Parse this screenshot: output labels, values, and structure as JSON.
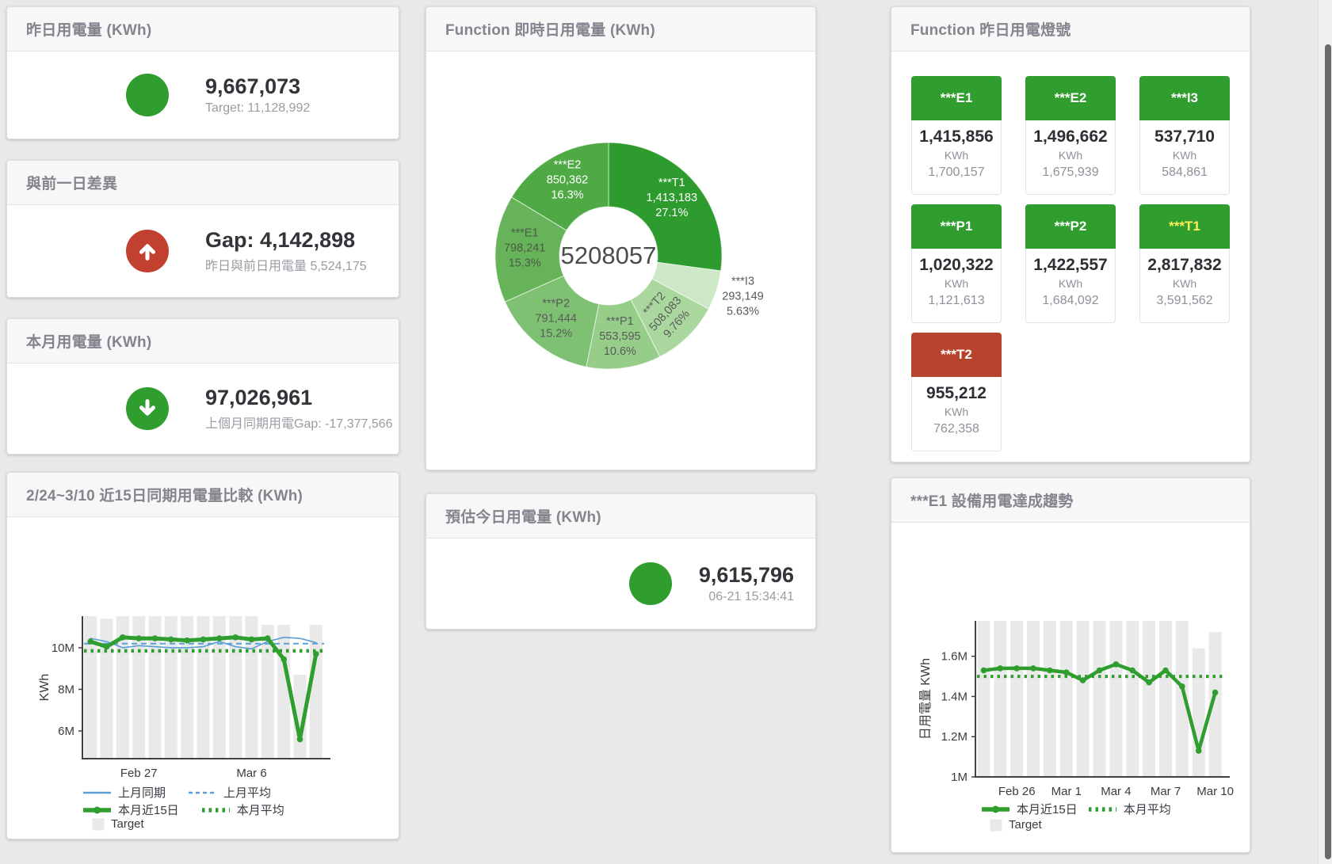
{
  "page": {
    "background": "#eae9e9"
  },
  "colors": {
    "green": "#2f9e2f",
    "red": "#c2402f",
    "blue": "#5b9fd8",
    "target_gray": "#e9e9e9",
    "warn_yellow": "#ffef54"
  },
  "stat_cards": [
    {
      "title": "昨日用電量 (KWh)",
      "icon": "circle",
      "icon_color": "#2f9e2f",
      "value": "9,667,073",
      "subtext": "Target: 11,128,992"
    },
    {
      "title": "與前一日差異",
      "icon": "arrow-up",
      "icon_color": "#c2402f",
      "value": "Gap: 4,142,898",
      "subtext": "昨日與前日用電量 5,524,175"
    },
    {
      "title": "本月用電量 (KWh)",
      "icon": "arrow-down",
      "icon_color": "#2f9e2f",
      "value": "97,026,961",
      "subtext": "上個月同期用電Gap: -17,377,566"
    },
    {
      "title": "預估今日用電量 (KWh)",
      "icon": "circle",
      "icon_color": "#2f9e2f",
      "value": "9,615,796",
      "subtext": "06-21 15:34:41"
    }
  ],
  "lights": {
    "title": "Function 昨日用電燈號",
    "unit": "KWh",
    "tiles": [
      {
        "name": "***E1",
        "value": "1,415,856",
        "target": "1,700,157",
        "header_bg": "#2f9e2f",
        "header_fg": "#ffffff"
      },
      {
        "name": "***E2",
        "value": "1,496,662",
        "target": "1,675,939",
        "header_bg": "#2f9e2f",
        "header_fg": "#ffffff"
      },
      {
        "name": "***I3",
        "value": "537,710",
        "target": "584,861",
        "header_bg": "#2f9e2f",
        "header_fg": "#ffffff"
      },
      {
        "name": "***P1",
        "value": "1,020,322",
        "target": "1,121,613",
        "header_bg": "#2f9e2f",
        "header_fg": "#ffffff"
      },
      {
        "name": "***P2",
        "value": "1,422,557",
        "target": "1,684,092",
        "header_bg": "#2f9e2f",
        "header_fg": "#ffffff"
      },
      {
        "name": "***T1",
        "value": "2,817,832",
        "target": "3,591,562",
        "header_bg": "#2f9e2f",
        "header_fg": "#ffef54"
      },
      {
        "name": "***T2",
        "value": "955,212",
        "target": "762,358",
        "header_bg": "#b7432d",
        "header_fg": "#ffffff"
      }
    ]
  },
  "chart_data": [
    {
      "id": "realtime_donut",
      "type": "pie",
      "title": "Function 即時日用電量 (KWh)",
      "center_label": "5208057",
      "unit": "KWh",
      "slices": [
        {
          "name": "***T1",
          "value": 1413183,
          "value_label": "1,413,183",
          "pct": "27.1%",
          "color": "#2e9b2e",
          "label_color": "#ffffff"
        },
        {
          "name": "***I3",
          "value": 293149,
          "value_label": "293,149",
          "pct": "5.63%",
          "color": "#cde8c6",
          "label_color": "#5a5a5a",
          "label_outside": true
        },
        {
          "name": "***T2",
          "value": 508083,
          "value_label": "508,083",
          "pct": "9.76%",
          "color": "#a9d79e",
          "label_color": "#5a5a5a",
          "label_rotate": -48
        },
        {
          "name": "***P1",
          "value": 553595,
          "value_label": "553,595",
          "pct": "10.6%",
          "color": "#95cd89",
          "label_color": "#5a5a5a"
        },
        {
          "name": "***P2",
          "value": 791444,
          "value_label": "791,444",
          "pct": "15.2%",
          "color": "#7ec172",
          "label_color": "#5a5a5a"
        },
        {
          "name": "***E1",
          "value": 798241,
          "value_label": "798,241",
          "pct": "15.3%",
          "color": "#66b35a",
          "label_color": "#4c5b46"
        },
        {
          "name": "***E2",
          "value": 850362,
          "value_label": "850,362",
          "pct": "16.3%",
          "color": "#4fa944",
          "label_color": "#ffffff"
        }
      ]
    },
    {
      "id": "compare15",
      "type": "line",
      "title": "2/24~3/10 近15日同期用電量比較 (KWh)",
      "ylabel": "KWh",
      "ylim": [
        4.67,
        11.52
      ],
      "y_ticks": [
        {
          "label": "6M",
          "value": 6
        },
        {
          "label": "8M",
          "value": 8
        },
        {
          "label": "10M",
          "value": 10
        }
      ],
      "x_ticks": [
        {
          "label": "Feb 27",
          "index": 3
        },
        {
          "label": "Mar 6",
          "index": 10
        }
      ],
      "n": 15,
      "grid": false,
      "target_name": "Target",
      "target_color": "#e9e9e9",
      "targets": [
        11.52,
        11.4,
        11.52,
        11.52,
        11.52,
        11.52,
        11.52,
        11.52,
        11.52,
        11.52,
        11.52,
        11.1,
        11.1,
        8.7,
        11.1
      ],
      "series": [
        {
          "name": "上月同期",
          "style": "solid",
          "color": "#5b9fd8",
          "width": 1.6,
          "values": [
            10.45,
            10.3,
            10.0,
            10.1,
            10.05,
            10.0,
            10.0,
            10.05,
            10.3,
            10.05,
            9.95,
            10.3,
            10.5,
            10.45,
            10.25
          ]
        },
        {
          "name": "上月平均",
          "style": "dashed",
          "color": "#5b9fd8",
          "width": 2,
          "avg": 10.2
        },
        {
          "name": "本月近15日",
          "style": "solid",
          "color": "#2f9e2f",
          "width": 5,
          "markers": true,
          "values": [
            10.3,
            10.05,
            10.5,
            10.45,
            10.45,
            10.4,
            10.35,
            10.4,
            10.45,
            10.5,
            10.4,
            10.45,
            9.45,
            5.6,
            9.7
          ]
        },
        {
          "name": "本月平均",
          "style": "dotted",
          "color": "#2f9e2f",
          "width": 4.5,
          "avg": 9.85
        }
      ],
      "legend": [
        [
          {
            "marker": "line-thin",
            "color": "#5b9fd8",
            "label": "上月同期"
          },
          {
            "marker": "line-dashed",
            "color": "#5b9fd8",
            "label": "上月平均"
          }
        ],
        [
          {
            "marker": "line-thick-dot",
            "color": "#2f9e2f",
            "label": "本月近15日"
          },
          {
            "marker": "line-dotted",
            "color": "#2f9e2f",
            "label": "本月平均"
          }
        ],
        [
          {
            "marker": "square",
            "color": "#e9e9e9",
            "label": "Target"
          }
        ]
      ]
    },
    {
      "id": "e1_trend",
      "type": "line",
      "title": "***E1 設備用電達成趨勢",
      "ylabel": "日用電量 KWh",
      "ylim": [
        1.0,
        1.776
      ],
      "y_ticks": [
        {
          "label": "1M",
          "value": 1
        },
        {
          "label": "1.2M",
          "value": 1.2
        },
        {
          "label": "1.4M",
          "value": 1.4
        },
        {
          "label": "1.6M",
          "value": 1.6
        }
      ],
      "x_ticks": [
        {
          "label": "Feb 26",
          "index": 2
        },
        {
          "label": "Mar 1",
          "index": 5
        },
        {
          "label": "Mar 4",
          "index": 8
        },
        {
          "label": "Mar 7",
          "index": 11
        },
        {
          "label": "Mar 10",
          "index": 14
        }
      ],
      "n": 15,
      "grid": false,
      "target_name": "Target",
      "target_color": "#e9e9e9",
      "targets": [
        1.776,
        1.776,
        1.776,
        1.776,
        1.776,
        1.776,
        1.776,
        1.776,
        1.776,
        1.776,
        1.776,
        1.776,
        1.776,
        1.64,
        1.72
      ],
      "series": [
        {
          "name": "本月近15日",
          "style": "solid",
          "color": "#2f9e2f",
          "width": 4.5,
          "markers": true,
          "values": [
            1.53,
            1.54,
            1.54,
            1.54,
            1.53,
            1.52,
            1.48,
            1.53,
            1.56,
            1.53,
            1.47,
            1.53,
            1.45,
            1.13,
            1.42
          ]
        },
        {
          "name": "本月平均",
          "style": "dotted",
          "color": "#2f9e2f",
          "width": 4,
          "avg": 1.5
        }
      ],
      "legend": [
        [
          {
            "marker": "line-thick-dot",
            "color": "#2f9e2f",
            "label": "本月近15日"
          },
          {
            "marker": "line-dotted",
            "color": "#2f9e2f",
            "label": "本月平均"
          }
        ],
        [
          {
            "marker": "square",
            "color": "#e9e9e9",
            "label": "Target"
          }
        ]
      ]
    }
  ]
}
